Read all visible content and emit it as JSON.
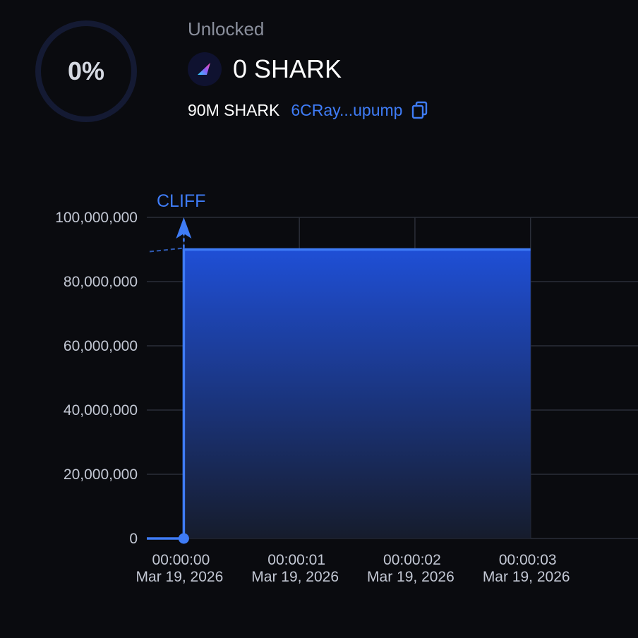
{
  "summary": {
    "unlocked_percent_label": "0%",
    "unlocked_fraction": 0,
    "status_label": "Unlocked",
    "unlocked_amount": "0 SHARK",
    "total_amount": "90M SHARK",
    "address_short": "6CRay...upump",
    "token_logo": "shark-fin-logo",
    "copy_icon": "copy-icon"
  },
  "colors": {
    "accent": "#3f7cf6",
    "area_top": "#1f4fd6",
    "area_bottom": "#161c2c",
    "ring_track": "#141a33",
    "grid": "#2a2e38"
  },
  "chart_data": {
    "type": "area",
    "x_ticks": [
      {
        "time": "00:00:00",
        "date": "Mar 19, 2026",
        "value": 0
      },
      {
        "time": "00:00:01",
        "date": "Mar 19, 2026",
        "value": 1
      },
      {
        "time": "00:00:02",
        "date": "Mar 19, 2026",
        "value": 2
      },
      {
        "time": "00:00:03",
        "date": "Mar 19, 2026",
        "value": 3
      }
    ],
    "y_ticks": [
      {
        "label": "0",
        "value": 0
      },
      {
        "label": "20,000,000",
        "value": 20000000
      },
      {
        "label": "40,000,000",
        "value": 40000000
      },
      {
        "label": "60,000,000",
        "value": 60000000
      },
      {
        "label": "80,000,000",
        "value": 80000000
      },
      {
        "label": "100,000,000",
        "value": 100000000
      }
    ],
    "ylim": [
      0,
      100000000
    ],
    "xlim_seconds": [
      -0.32,
      3.93
    ],
    "points": [
      {
        "x": -0.32,
        "y": 0
      },
      {
        "x": 0,
        "y": 0
      },
      {
        "x": 0,
        "y": 90000000
      },
      {
        "x": 3,
        "y": 90000000
      }
    ],
    "cliff": {
      "label": "CLIFF",
      "x": 0,
      "y": 90000000
    },
    "grid": true
  }
}
